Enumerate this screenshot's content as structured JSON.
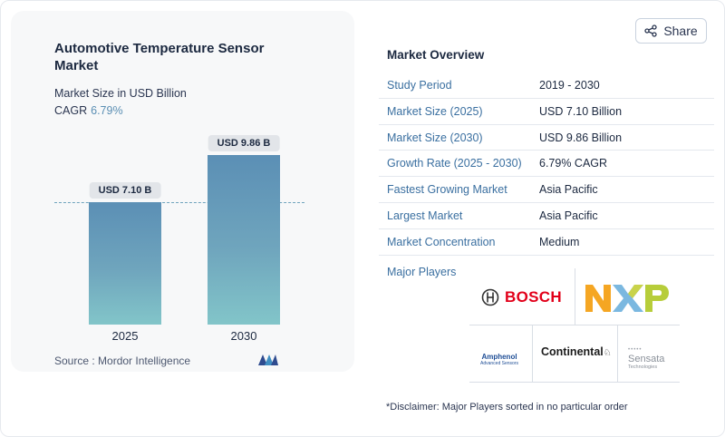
{
  "chart": {
    "title": "Automotive Temperature Sensor Market",
    "subtitle": "Market Size in USD Billion",
    "cagr_label": "CAGR",
    "cagr_value": "6.79%",
    "source": "Source :  Mordor Intelligence"
  },
  "chart_data": {
    "type": "bar",
    "categories": [
      "2025",
      "2030"
    ],
    "values": [
      7.1,
      9.86
    ],
    "data_labels": [
      "USD 7.10 B",
      "USD 9.86 B"
    ],
    "title": "Automotive Temperature Sensor Market",
    "ylabel": "Market Size in USD Billion",
    "grid": false
  },
  "share": {
    "label": "Share"
  },
  "overview": {
    "title": "Market Overview",
    "rows": [
      {
        "key": "Study Period",
        "value": "2019 - 2030"
      },
      {
        "key": "Market Size (2025)",
        "value": "USD 7.10 Billion"
      },
      {
        "key": "Market Size (2030)",
        "value": "USD 9.86 Billion"
      },
      {
        "key": "Growth Rate (2025 - 2030)",
        "value": "6.79% CAGR"
      },
      {
        "key": "Fastest Growing Market",
        "value": "Asia Pacific"
      },
      {
        "key": "Largest Market",
        "value": "Asia Pacific"
      },
      {
        "key": "Market Concentration",
        "value": "Medium"
      }
    ]
  },
  "players": {
    "label": "Major Players",
    "logos": {
      "bosch": "BOSCH",
      "nxp": "NXP",
      "amphenol": "Amphenol",
      "amphenol_sub": "Advanced Sensors",
      "continental": "Continental",
      "sensata": "Sensata",
      "sensata_sub": "Technologies"
    }
  },
  "disclaimer": "*Disclaimer: Major Players sorted in no particular order",
  "colors": {
    "bar_top": "#5b8fb5",
    "bar_bottom": "#82c5c9",
    "link": "#3a6fa0",
    "cagr": "#5b8fb4"
  }
}
